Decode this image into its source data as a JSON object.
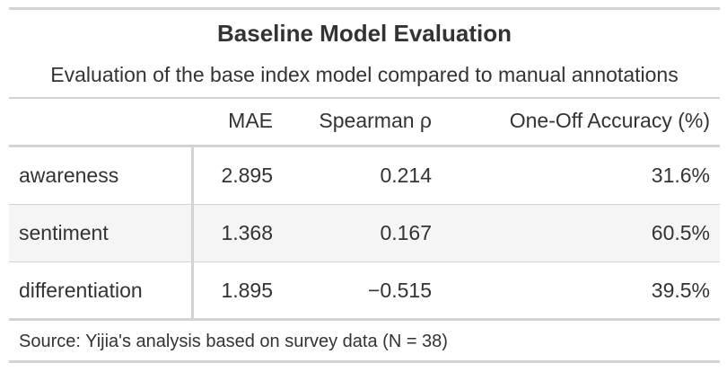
{
  "table": {
    "title": "Baseline Model Evaluation",
    "subtitle": "Evaluation of the base index model compared to manual annotations",
    "columns": [
      "",
      "MAE",
      "Spearman ρ",
      "One-Off Accuracy (%)"
    ],
    "rows": [
      {
        "label": "awareness",
        "mae": "2.895",
        "spearman": "0.214",
        "accuracy": "31.6%"
      },
      {
        "label": "sentiment",
        "mae": "1.368",
        "spearman": "0.167",
        "accuracy": "60.5%"
      },
      {
        "label": "differentiation",
        "mae": "1.895",
        "spearman": "−0.515",
        "accuracy": "39.5%"
      }
    ],
    "source_note": "Source: Yijia's analysis based on survey data (N = 38)"
  },
  "colors": {
    "text": "#333333",
    "rule": "#d3d3d3",
    "stripe": "#f5f5f5"
  }
}
